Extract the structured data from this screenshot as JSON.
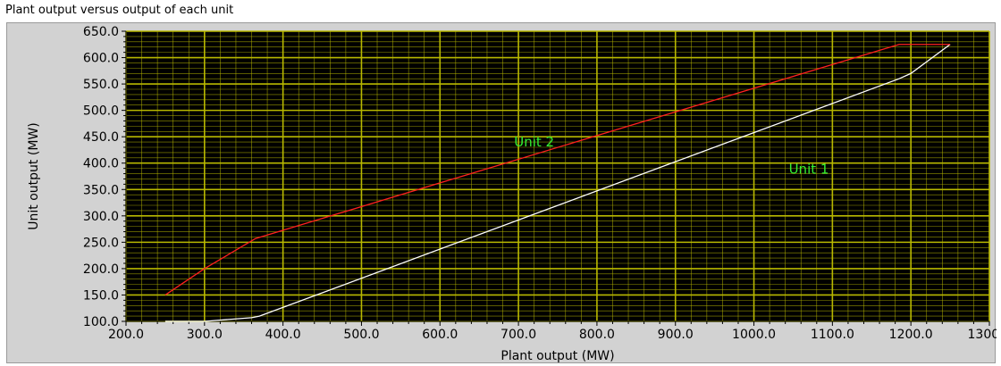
{
  "chart_data": {
    "type": "line",
    "title": "Plant output versus output of each unit",
    "xlabel": "Plant output (MW)",
    "ylabel": "Unit output (MW)",
    "xlim": [
      200,
      1300
    ],
    "ylim": [
      100,
      650
    ],
    "x_ticks": [
      "200.0",
      "300.0",
      "400.0",
      "500.0",
      "600.0",
      "700.0",
      "800.0",
      "900.0",
      "1000.0",
      "1100.0",
      "1200.0",
      "1300.0"
    ],
    "y_ticks": [
      "100.0",
      "150.0",
      "200.0",
      "250.0",
      "300.0",
      "350.0",
      "400.0",
      "450.0",
      "500.0",
      "550.0",
      "600.0",
      "650.0"
    ],
    "grid": true,
    "series": [
      {
        "name": "Unit 1",
        "color": "#ffffff",
        "x": [
          250,
          300,
          360,
          370,
          1185,
          1200,
          1250
        ],
        "y": [
          100,
          100,
          107,
          110,
          560,
          570,
          625
        ]
      },
      {
        "name": "Unit 2",
        "color": "#ff2020",
        "x": [
          250,
          300,
          365,
          1185,
          1250
        ],
        "y": [
          150,
          200,
          257,
          625,
          625
        ]
      }
    ],
    "annotations": [
      {
        "text": "Unit 2",
        "x": 720,
        "y": 432
      },
      {
        "text": "Unit 1",
        "x": 1070,
        "y": 380
      }
    ],
    "plot_background": "#000000",
    "grid_color": "#b8b800"
  }
}
